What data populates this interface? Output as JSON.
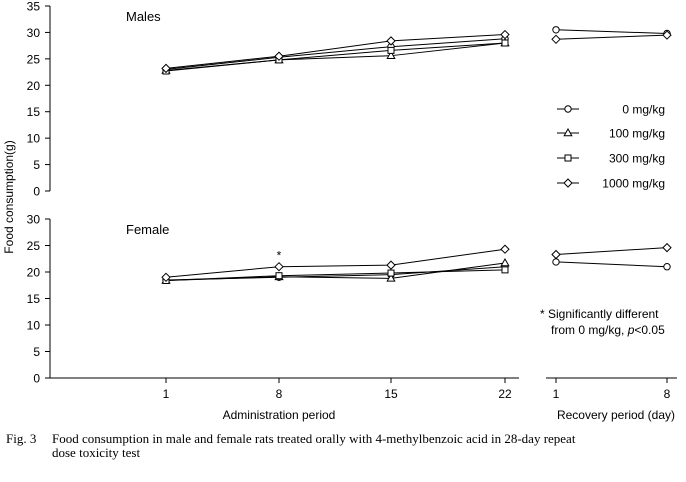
{
  "chart_data": {
    "type": "line",
    "ylabel": "Food consumption(g)",
    "legend": {
      "placement": "right",
      "entries": [
        {
          "label": "0 mg/kg",
          "marker": "circle"
        },
        {
          "label": "100 mg/kg",
          "marker": "triangle"
        },
        {
          "label": "300 mg/kg",
          "marker": "square"
        },
        {
          "label": "1000 mg/kg",
          "marker": "diamond"
        }
      ]
    },
    "annotation": {
      "line1": "* Significantly different",
      "line2_prefix": "from 0 mg/kg, ",
      "line2_p": "p",
      "line2_suffix": "<0.05"
    },
    "significance_mark": {
      "symbol": "*",
      "panel": 1,
      "x": 8,
      "series": "1000 mg/kg"
    },
    "x_groups": [
      {
        "label": "Administration period",
        "ticks": [
          1,
          8,
          15,
          22
        ]
      },
      {
        "label": "Recovery period (day)",
        "ticks": [
          1,
          8
        ]
      }
    ],
    "panels": [
      {
        "title": "Males",
        "ylim": [
          0,
          35
        ],
        "yticks": [
          0,
          5,
          10,
          15,
          20,
          25,
          30,
          35
        ],
        "series": [
          {
            "name": "0 mg/kg",
            "admin": [
              23.0,
              25.3,
              27.3,
              28.8
            ],
            "recovery": [
              30.5,
              29.8
            ]
          },
          {
            "name": "100 mg/kg",
            "admin": [
              22.8,
              24.8,
              25.6,
              28.0
            ],
            "recovery": null
          },
          {
            "name": "300 mg/kg",
            "admin": [
              22.7,
              24.8,
              26.6,
              28.0
            ],
            "recovery": null
          },
          {
            "name": "1000 mg/kg",
            "admin": [
              23.2,
              25.5,
              28.4,
              29.6
            ],
            "recovery": [
              28.7,
              29.5
            ]
          }
        ]
      },
      {
        "title": "Female",
        "ylim": [
          0,
          30
        ],
        "yticks": [
          0,
          5,
          10,
          15,
          20,
          25,
          30
        ],
        "series": [
          {
            "name": "0 mg/kg",
            "admin": [
              18.5,
              19.0,
              19.5,
              21.0
            ],
            "recovery": [
              21.9,
              21.0
            ]
          },
          {
            "name": "100 mg/kg",
            "admin": [
              18.4,
              19.1,
              18.8,
              21.7
            ],
            "recovery": null
          },
          {
            "name": "300 mg/kg",
            "admin": [
              18.4,
              19.3,
              19.8,
              20.4
            ],
            "recovery": null
          },
          {
            "name": "1000 mg/kg",
            "admin": [
              19.0,
              21.0,
              21.3,
              24.3
            ],
            "recovery": [
              23.3,
              24.6
            ]
          }
        ]
      }
    ]
  },
  "caption": {
    "label": "Fig. 3",
    "line1": "Food consumption in male and female rats treated orally with 4-methylbenzoic acid in 28-day repeat",
    "line2": "dose toxicity test"
  }
}
